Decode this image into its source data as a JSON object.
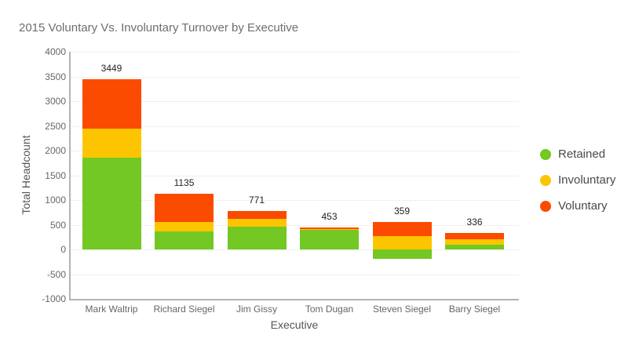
{
  "chart_data": {
    "type": "bar",
    "stacked": true,
    "title": "2015 Voluntary Vs. Involuntary Turnover by Executive",
    "xlabel": "Executive",
    "ylabel": "Total Headcount",
    "ylim": [
      -1000,
      4000
    ],
    "yticks": [
      4000,
      3500,
      3000,
      2500,
      2000,
      1500,
      1000,
      500,
      0,
      -500,
      -1000
    ],
    "grid": true,
    "legend_position": "right",
    "categories": [
      "Mark Waltrip",
      "Richard Siegel",
      "Jim Gissy",
      "Tom Dugan",
      "Steven Siegel",
      "Barry Siegel"
    ],
    "series": [
      {
        "name": "Retained",
        "color": "#73C823",
        "values": [
          1850,
          365,
          460,
          400,
          -196,
          95
        ]
      },
      {
        "name": "Involuntary",
        "color": "#FDC500",
        "values": [
          590,
          190,
          160,
          15,
          270,
          110
        ]
      },
      {
        "name": "Voluntary",
        "color": "#FA4B00",
        "values": [
          1009,
          580,
          151,
          38,
          285,
          131
        ]
      }
    ],
    "totals": [
      3449,
      1135,
      771,
      453,
      359,
      336
    ]
  },
  "colors": {
    "background": "#ffffff",
    "title_text": "#6e6e6e",
    "axis_line": "#b3b3b3",
    "gridline": "#f0f0f0",
    "tick_text": "#666666",
    "axis_title_text": "#555555",
    "bar_label_text": "#222222",
    "legend_text": "#4a4a4a"
  }
}
